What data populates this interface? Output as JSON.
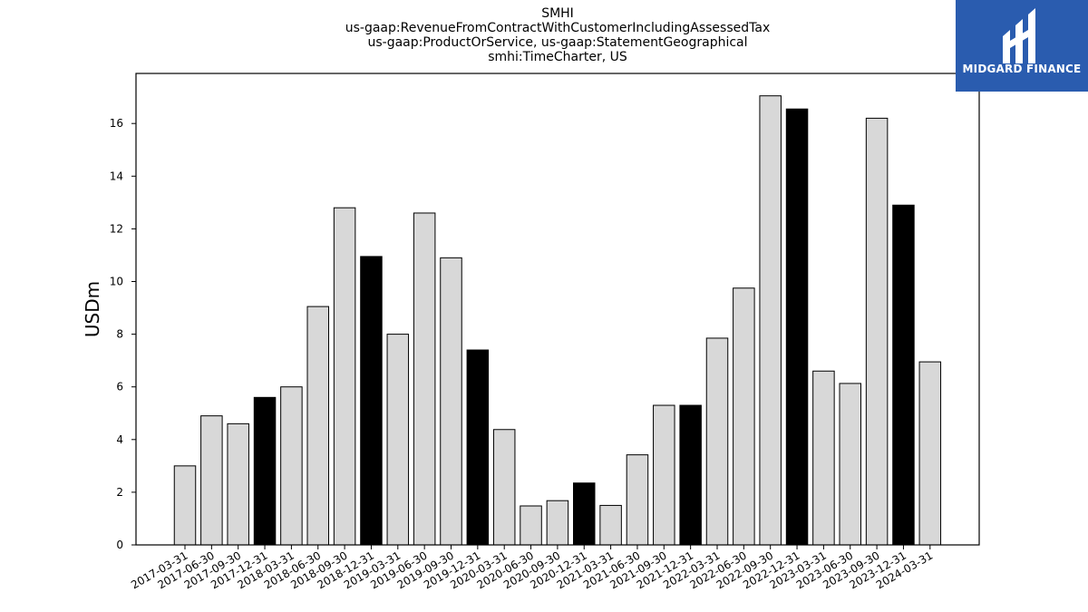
{
  "chart_data": {
    "type": "bar",
    "title_lines": [
      "SMHI",
      "us-gaap:RevenueFromContractWithCustomerIncludingAssessedTax",
      "us-gaap:ProductOrService, us-gaap:StatementGeographical",
      "smhi:TimeCharter, US"
    ],
    "xlabel": "",
    "ylabel": "USDm",
    "ylim": [
      0,
      17.9
    ],
    "yticks": [
      0,
      2,
      4,
      6,
      8,
      10,
      12,
      14,
      16
    ],
    "grid": false,
    "categories": [
      "2017-03-31",
      "2017-06-30",
      "2017-09-30",
      "2017-12-31",
      "2018-03-31",
      "2018-06-30",
      "2018-09-30",
      "2018-12-31",
      "2019-03-31",
      "2019-06-30",
      "2019-09-30",
      "2019-12-31",
      "2020-03-31",
      "2020-06-30",
      "2020-09-30",
      "2020-12-31",
      "2021-03-31",
      "2021-06-30",
      "2021-09-30",
      "2021-12-31",
      "2022-03-31",
      "2022-06-30",
      "2022-09-30",
      "2022-12-31",
      "2023-03-31",
      "2023-06-30",
      "2023-09-30",
      "2023-12-31",
      "2024-03-31"
    ],
    "values": [
      3.0,
      4.9,
      4.6,
      5.6,
      6.0,
      9.05,
      12.8,
      10.95,
      8.0,
      12.6,
      10.9,
      7.4,
      4.38,
      1.48,
      1.68,
      2.35,
      1.5,
      3.42,
      5.3,
      5.3,
      7.85,
      9.75,
      17.05,
      16.55,
      6.6,
      6.13,
      16.2,
      12.9,
      6.95
    ],
    "highlight_categories": [
      "2017-12-31",
      "2018-12-31",
      "2019-12-31",
      "2020-12-31",
      "2021-12-31",
      "2022-12-31",
      "2023-12-31"
    ]
  },
  "colors": {
    "bar_default": "#d8d8d8",
    "bar_highlight": "#000000",
    "bar_edge": "#000000",
    "logo_background": "#2a5caf",
    "logo_foreground": "#ffffff"
  },
  "logo": {
    "text": "MIDGARD FINANCE",
    "icon": "midgard-finance-logo-mark"
  }
}
